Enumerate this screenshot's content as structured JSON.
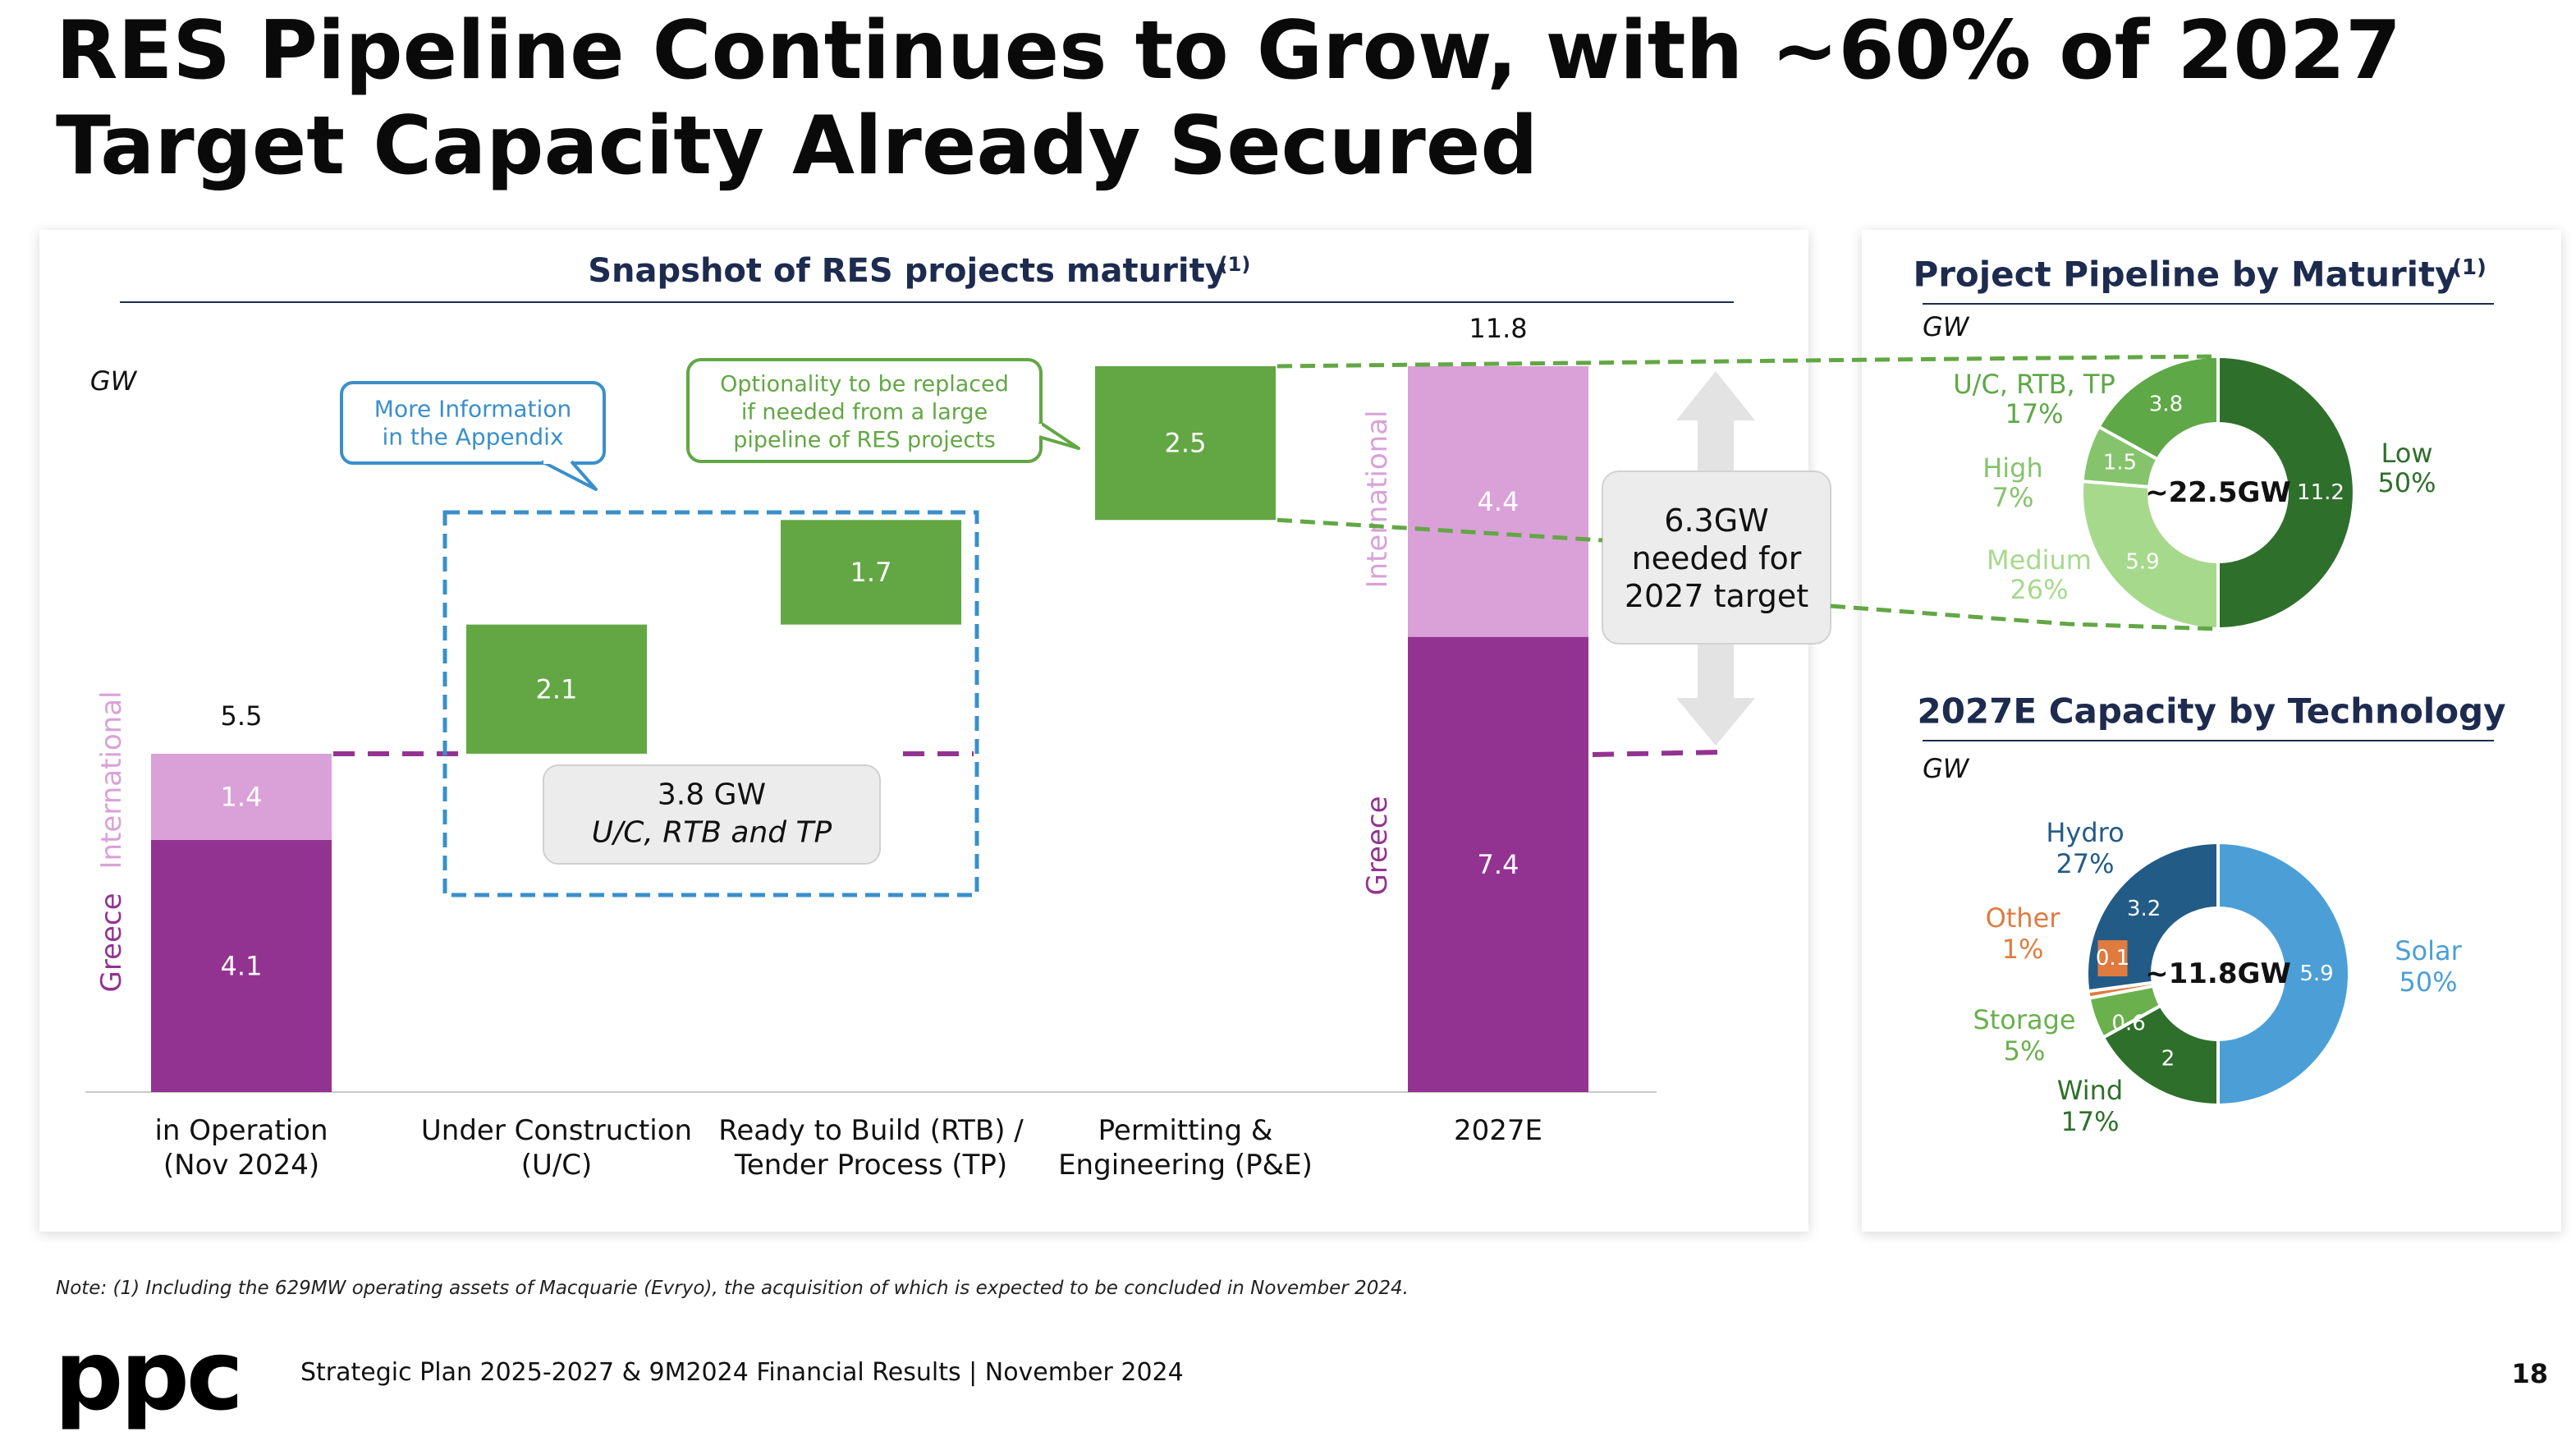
{
  "slide": {
    "title": "RES Pipeline Continues to Grow, with ~60% of 2027 Target Capacity Already Secured",
    "note": "Note: (1) Including the 629MW operating assets of Macquarie (Evryo), the acquisition of which is expected to be concluded in November 2024.",
    "logo": "ppc",
    "footer": "Strategic Plan 2025-2027 & 9M2024 Financial Results | November 2024",
    "page_number": "18"
  },
  "colors": {
    "greece": "#933391",
    "international": "#d9a1d8",
    "pipeline_green": "#62a744",
    "low_green": "#2f6f2c",
    "uc_green": "#5ea847",
    "high_green": "#85c46c",
    "medium_green": "#a7d98d",
    "hydro": "#235b87",
    "solar": "#4b9fd6",
    "wind": "#2e6f2b",
    "storage": "#6ab04c",
    "other": "#e07b3f",
    "callout_blue": "#3a8fcb",
    "heading_navy": "#1d2b4f"
  },
  "chart_data": [
    {
      "type": "bar",
      "subtype": "waterfall",
      "title": "Snapshot of RES projects maturity",
      "title_sup": "(1)",
      "ylabel": "GW",
      "ylim": [
        0,
        11.8
      ],
      "categories": [
        [
          "in Operation",
          "(Nov 2024)"
        ],
        [
          "Under Construction",
          "(U/C)"
        ],
        [
          "Ready to Build (RTB) /",
          "Tender Process (TP)"
        ],
        [
          "Permitting &",
          "Engineering (P&E)"
        ],
        [
          "2027E"
        ]
      ],
      "series_labels": {
        "greece": "Greece",
        "international": "International"
      },
      "bars": [
        {
          "kind": "stacked",
          "segments": [
            {
              "series": "greece",
              "value": 4.1
            },
            {
              "series": "international",
              "value": 1.4
            }
          ],
          "total": 5.5
        },
        {
          "kind": "floating",
          "base": 5.5,
          "value": 2.1
        },
        {
          "kind": "floating",
          "base": 7.6,
          "value": 1.7
        },
        {
          "kind": "floating",
          "base": 9.3,
          "value": 2.5
        },
        {
          "kind": "stacked",
          "segments": [
            {
              "series": "greece",
              "value": 7.4
            },
            {
              "series": "international",
              "value": 4.4
            }
          ],
          "total": 11.8
        }
      ],
      "callouts": {
        "appendix": [
          "More Information",
          "in the Appendix"
        ],
        "optionality": [
          "Optionality to be replaced",
          "if needed from a large",
          "pipeline of RES projects"
        ],
        "secured_value": "3.8 GW",
        "secured_label": "U/C, RTB and TP",
        "needed": [
          "6.3GW",
          "needed for",
          "2027 target"
        ]
      }
    },
    {
      "type": "pie",
      "subtype": "donut",
      "title": "Project Pipeline by Maturity",
      "title_sup": "(1)",
      "unit": "GW",
      "center_label": "~22.5GW",
      "slices": [
        {
          "name": "Low",
          "value": 11.2,
          "pct": "50%"
        },
        {
          "name": "Medium",
          "value": 5.9,
          "pct": "26%"
        },
        {
          "name": "High",
          "value": 1.5,
          "pct": "7%"
        },
        {
          "name": "U/C, RTB, TP",
          "value": 3.8,
          "pct": "17%"
        }
      ]
    },
    {
      "type": "pie",
      "subtype": "donut",
      "title": "2027E Capacity by Technology",
      "unit": "GW",
      "center_label": "~11.8GW",
      "slices": [
        {
          "name": "Solar",
          "value": 5.9,
          "pct": "50%"
        },
        {
          "name": "Wind",
          "value": 2.0,
          "pct": "17%"
        },
        {
          "name": "Storage",
          "value": 0.6,
          "pct": "5%"
        },
        {
          "name": "Other",
          "value": 0.1,
          "pct": "1%"
        },
        {
          "name": "Hydro",
          "value": 3.2,
          "pct": "27%"
        }
      ]
    }
  ]
}
